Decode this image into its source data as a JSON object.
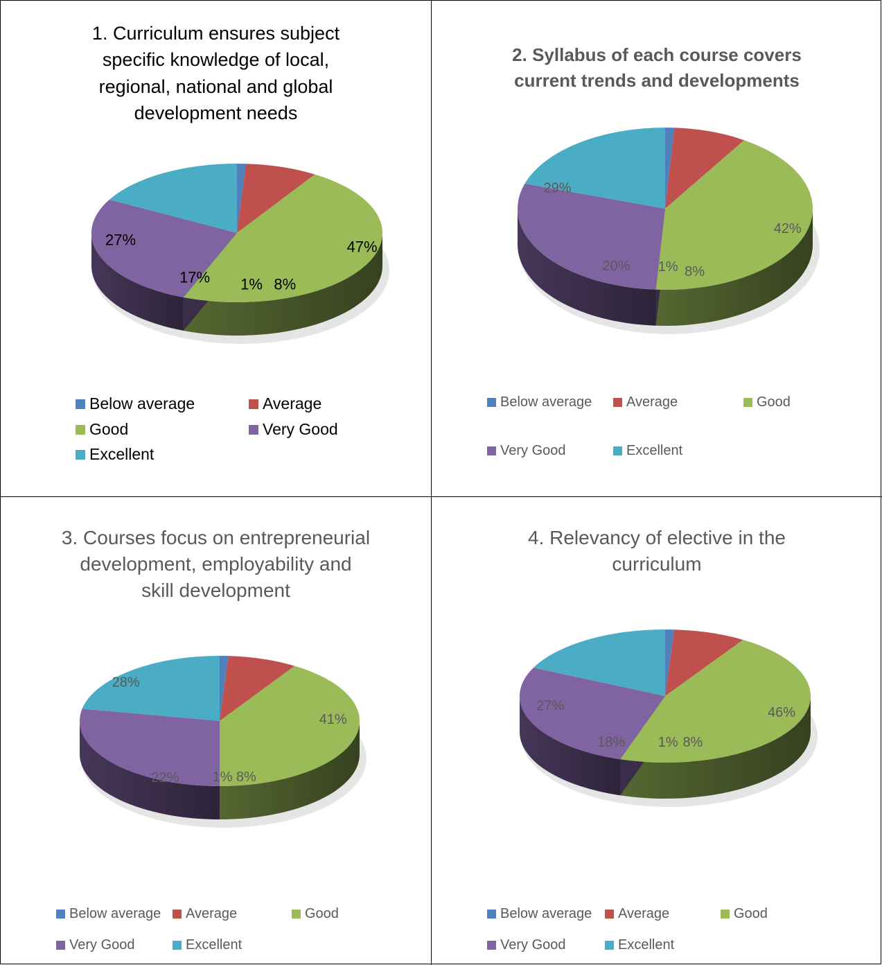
{
  "chart_data": [
    {
      "type": "pie",
      "title": "1. Curriculum ensures subject\nspecific knowledge of local,\nregional, national and global\ndevelopment needs",
      "categories": [
        "Below average",
        "Average",
        "Good",
        "Very Good",
        "Excellent"
      ],
      "values": [
        1,
        8,
        47,
        27,
        17
      ],
      "labels": [
        "1%",
        "8%",
        "47%",
        "27%",
        "17%"
      ],
      "legend_position": "bottom"
    },
    {
      "type": "pie",
      "title": "2. Syllabus of each course covers\ncurrent trends and developments",
      "categories": [
        "Below average",
        "Average",
        "Good",
        "Very Good",
        "Excellent"
      ],
      "values": [
        1,
        8,
        42,
        29,
        20
      ],
      "labels": [
        "1%",
        "8%",
        "42%",
        "29%",
        "20%"
      ],
      "legend_position": "bottom"
    },
    {
      "type": "pie",
      "title": "3. Courses focus on entrepreneurial\ndevelopment, employability and\nskill development",
      "categories": [
        "Below average",
        "Average",
        "Good",
        "Very Good",
        "Excellent"
      ],
      "values": [
        1,
        8,
        41,
        28,
        22
      ],
      "labels": [
        "1%",
        "8%",
        "41%",
        "28%",
        "22%"
      ],
      "legend_position": "bottom"
    },
    {
      "type": "pie",
      "title": "4. Relevancy of elective in the\ncurriculum",
      "categories": [
        "Below average",
        "Average",
        "Good",
        "Very Good",
        "Excellent"
      ],
      "values": [
        1,
        8,
        46,
        27,
        18
      ],
      "labels": [
        "1%",
        "8%",
        "46%",
        "27%",
        "18%"
      ],
      "legend_position": "bottom"
    }
  ],
  "colors": {
    "Below average": "#4f81bd",
    "Average": "#c0504d",
    "Good": "#9bbb59",
    "Very Good": "#8064a2",
    "Excellent": "#4bacc6"
  }
}
